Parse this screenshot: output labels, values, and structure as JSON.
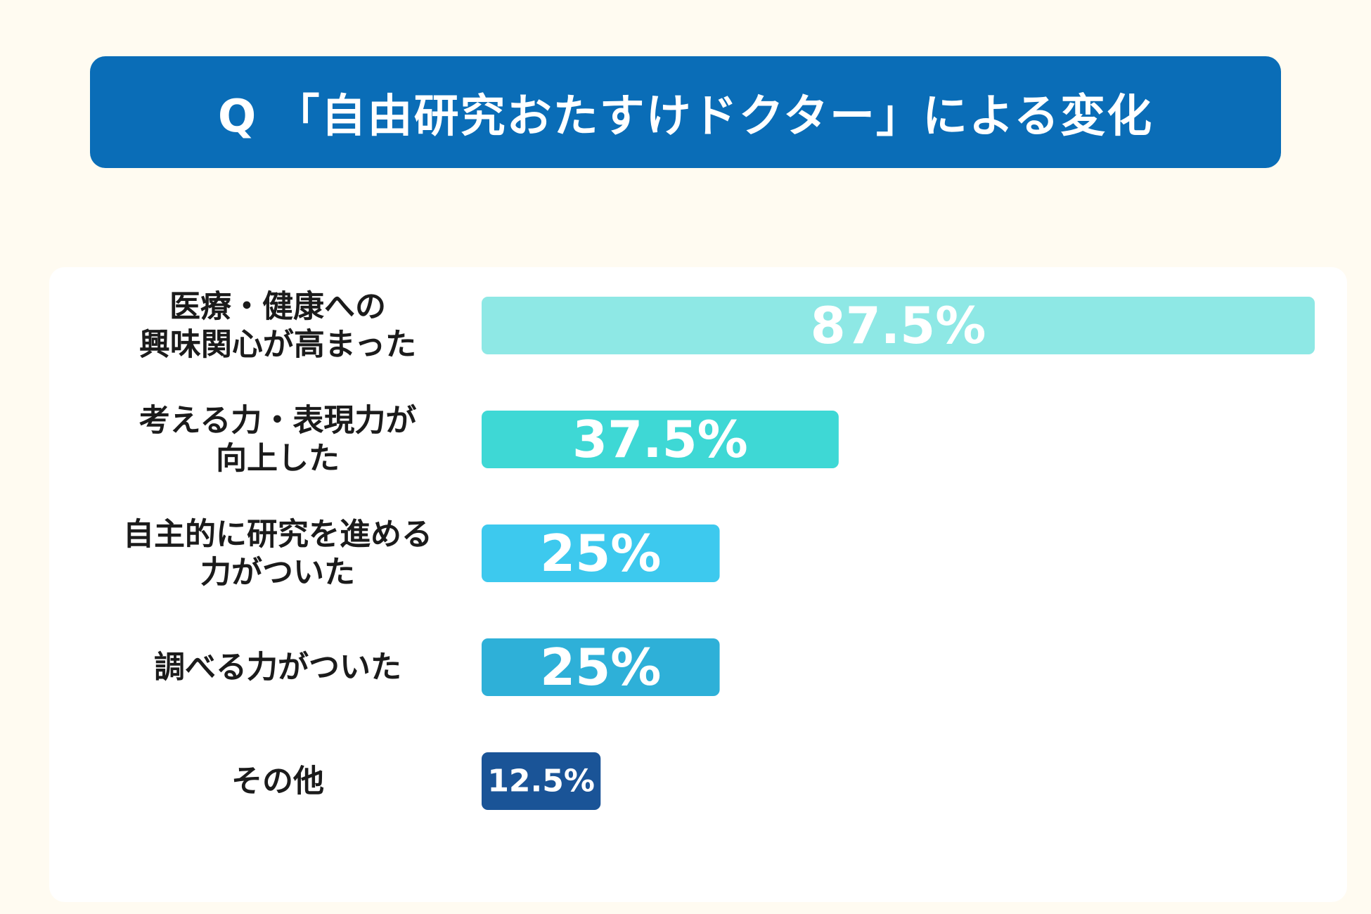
{
  "title": "Q 「自由研究おたすけドクター」による変化",
  "chart_data": {
    "type": "bar",
    "orientation": "horizontal",
    "title": "Q 「自由研究おたすけドクター」による変化",
    "unit": "%",
    "xlim": [
      0,
      87.5
    ],
    "categories": [
      [
        "医療・健康への",
        "興味関心が高まった"
      ],
      [
        "考える力・表現力が",
        "向上した"
      ],
      [
        "自主的に研究を進める",
        "力がついた"
      ],
      [
        "調べる力がついた"
      ],
      [
        "その他"
      ]
    ],
    "values": [
      87.5,
      37.5,
      25,
      25,
      12.5
    ],
    "value_labels": [
      "87.5%",
      "37.5%",
      "25%",
      "25%",
      "12.5%"
    ],
    "colors": [
      "#8ee8e5",
      "#3ed8d5",
      "#3dc9ee",
      "#2eb0d8",
      "#1a5497"
    ]
  }
}
